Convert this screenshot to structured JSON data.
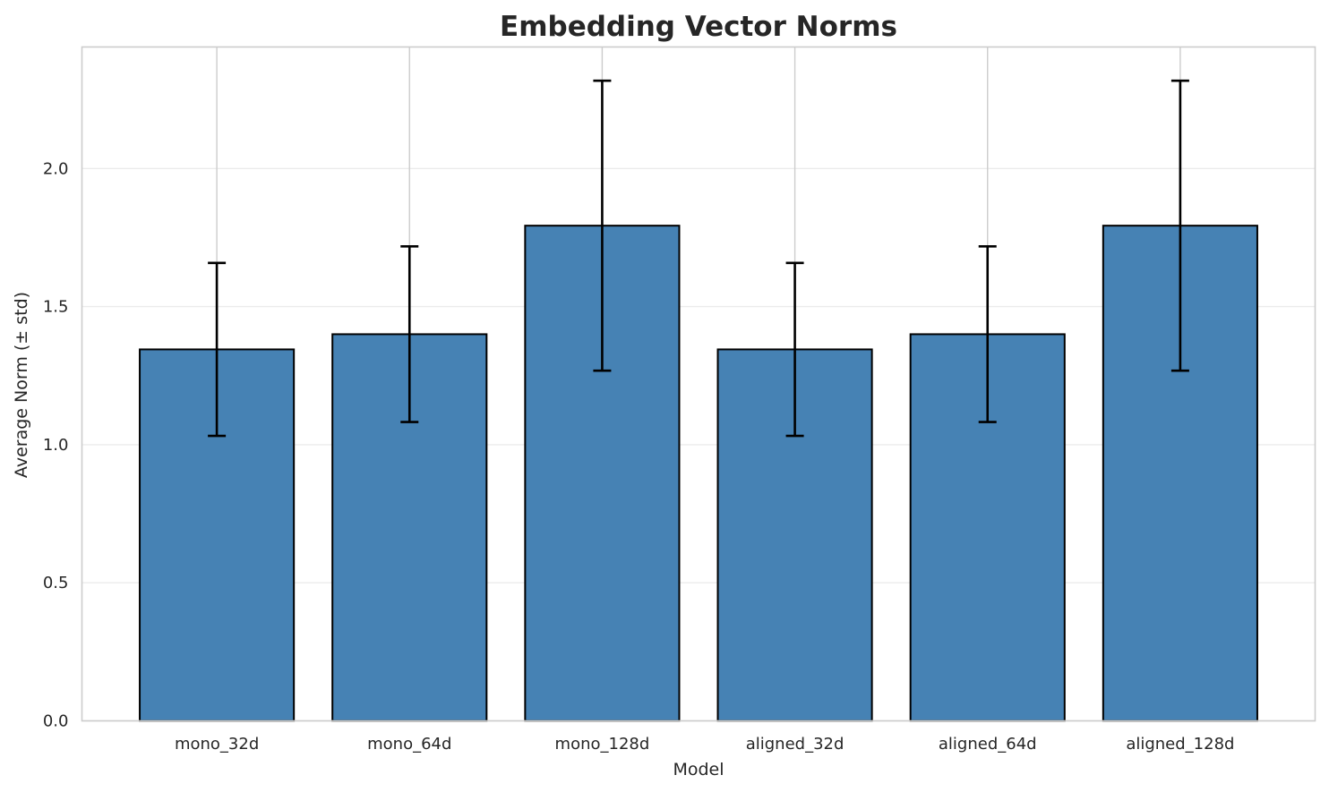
{
  "chart_data": {
    "type": "bar",
    "title": "Embedding Vector Norms",
    "xlabel": "Model",
    "ylabel": "Average Norm (± std)",
    "categories": [
      "mono_32d",
      "mono_64d",
      "mono_128d",
      "aligned_32d",
      "aligned_64d",
      "aligned_128d"
    ],
    "values": [
      1.345,
      1.4,
      1.793,
      1.345,
      1.4,
      1.793
    ],
    "errors": [
      0.313,
      0.318,
      0.525,
      0.313,
      0.318,
      0.525
    ],
    "ylim": [
      0,
      2.44
    ],
    "yticks": [
      "0.0",
      "0.5",
      "1.0",
      "1.5",
      "2.0"
    ],
    "grid": true,
    "bar_color": "#4682b4",
    "edge_color": "#000000"
  }
}
